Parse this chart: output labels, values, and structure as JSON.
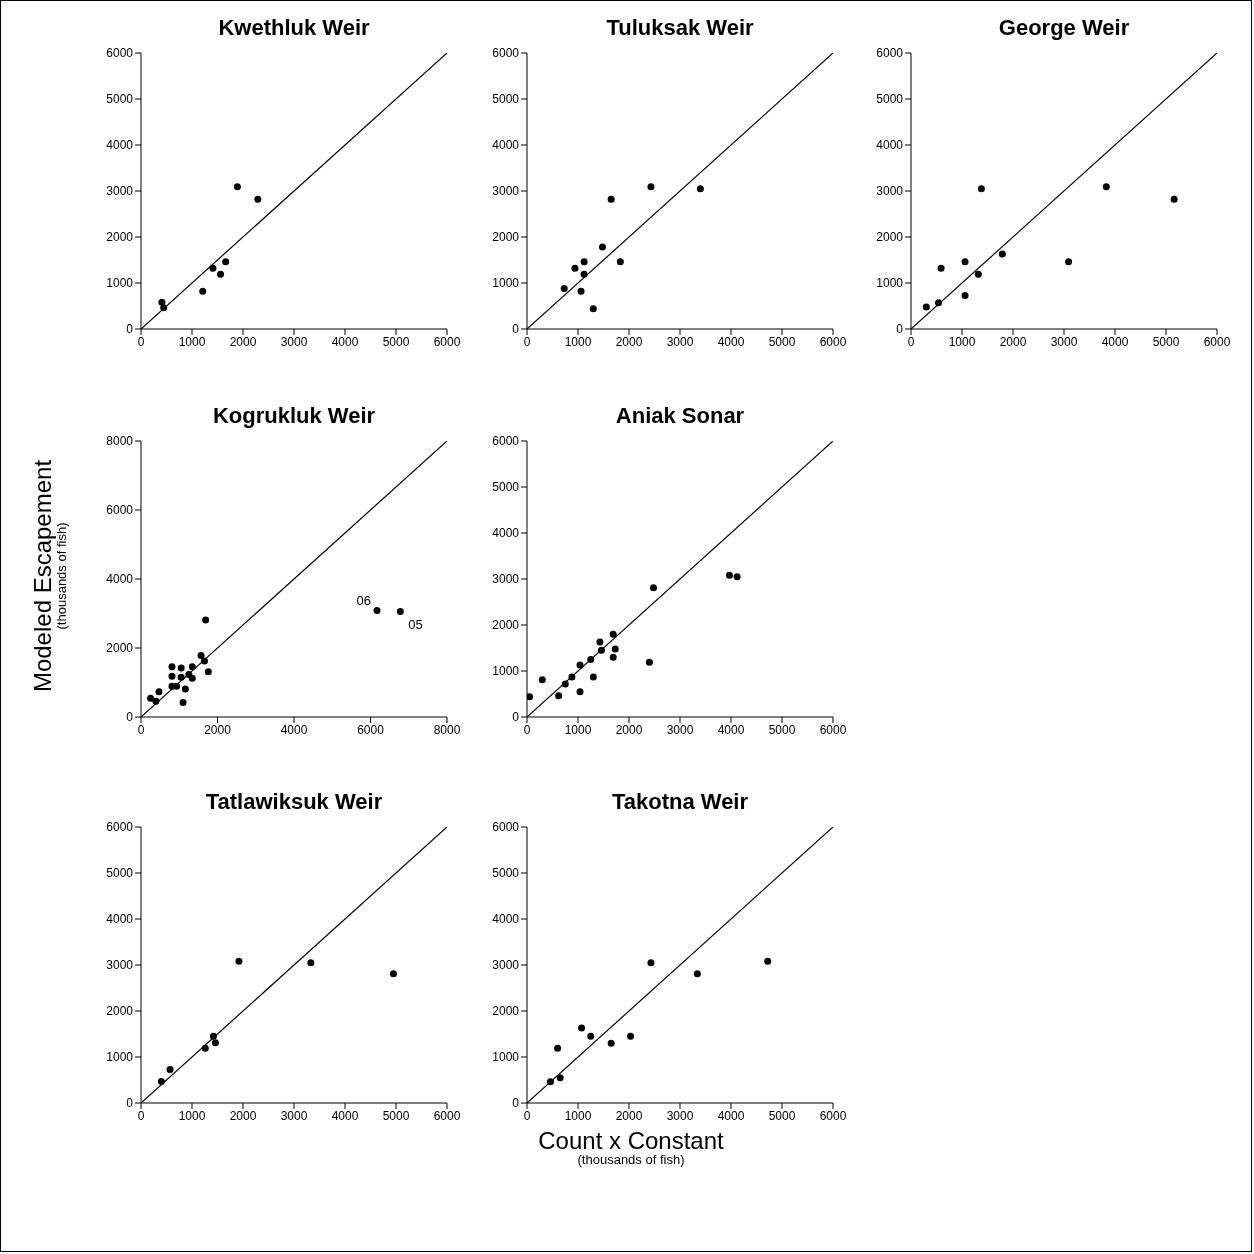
{
  "chart_data": [
    {
      "type": "scatter",
      "title": "Kwethluk Weir",
      "xlabel": "Count x Constant\n(thousands of fish)",
      "ylabel": "Modeled Escapement\n(thousands of fish)",
      "xlim": [
        0,
        6000
      ],
      "ylim": [
        0,
        6000
      ],
      "xticks": [
        0,
        1000,
        2000,
        3000,
        4000,
        5000,
        6000
      ],
      "yticks": [
        0,
        1000,
        2000,
        3000,
        4000,
        5000,
        6000
      ],
      "series": [
        {
          "type": "scatter",
          "color": "#000000",
          "marker": "circle",
          "x": [
            410,
            445,
            1210,
            1410,
            1560,
            1660,
            1890,
            2290
          ],
          "values": [
            580,
            460,
            820,
            1320,
            1190,
            1460,
            3090,
            2820
          ]
        },
        {
          "type": "line",
          "color": "#000000",
          "marker": "none",
          "x": [
            0,
            6000
          ],
          "values": [
            0,
            6000
          ]
        }
      ]
    },
    {
      "type": "scatter",
      "title": "Tuluksak Weir",
      "xlim": [
        0,
        6000
      ],
      "ylim": [
        0,
        6000
      ],
      "xticks": [
        0,
        1000,
        2000,
        3000,
        4000,
        5000,
        6000
      ],
      "yticks": [
        0,
        1000,
        2000,
        3000,
        4000,
        5000,
        6000
      ],
      "series": [
        {
          "type": "scatter",
          "color": "#000000",
          "marker": "circle",
          "x": [
            730,
            940,
            1060,
            1120,
            1120,
            1300,
            1480,
            1830,
            1650,
            2430,
            3400
          ],
          "values": [
            880,
            1320,
            820,
            1460,
            1190,
            440,
            1780,
            1460,
            2820,
            3090,
            3050
          ]
        },
        {
          "type": "line",
          "color": "#000000",
          "marker": "none",
          "x": [
            0,
            6000
          ],
          "values": [
            0,
            6000
          ]
        }
      ]
    },
    {
      "type": "scatter",
      "title": "George Weir",
      "xlim": [
        0,
        6000
      ],
      "ylim": [
        0,
        6000
      ],
      "xticks": [
        0,
        1000,
        2000,
        3000,
        4000,
        5000,
        6000
      ],
      "yticks": [
        0,
        1000,
        2000,
        3000,
        4000,
        5000,
        6000
      ],
      "series": [
        {
          "type": "scatter",
          "color": "#000000",
          "marker": "circle",
          "x": [
            300,
            540,
            590,
            1060,
            1060,
            1320,
            1380,
            1790,
            3090,
            3830,
            5160
          ],
          "values": [
            480,
            570,
            1320,
            1460,
            730,
            1190,
            3050,
            1630,
            1460,
            3090,
            2820
          ]
        },
        {
          "type": "line",
          "color": "#000000",
          "marker": "none",
          "x": [
            0,
            6000
          ],
          "values": [
            0,
            6000
          ]
        }
      ]
    },
    {
      "type": "scatter",
      "title": "Kogrukluk Weir",
      "xlim": [
        0,
        8000
      ],
      "ylim": [
        0,
        8000
      ],
      "xticks": [
        0,
        2000,
        4000,
        6000,
        8000
      ],
      "yticks": [
        0,
        2000,
        4000,
        6000,
        8000
      ],
      "annotations": [
        {
          "text": "06",
          "x": 6170,
          "y": 3090
        },
        {
          "text": "05",
          "x": 6780,
          "y": 3060
        }
      ],
      "series": [
        {
          "type": "scatter",
          "color": "#000000",
          "marker": "circle",
          "x": [
            250,
            390,
            470,
            810,
            810,
            810,
            930,
            1050,
            1050,
            1100,
            1160,
            1250,
            1340,
            1340,
            1570,
            1660,
            1760,
            1690,
            6170,
            6780
          ],
          "values": [
            540,
            460,
            730,
            1460,
            1180,
            890,
            890,
            1420,
            1150,
            420,
            810,
            1230,
            1460,
            1120,
            1780,
            1620,
            1310,
            2810,
            3090,
            3060
          ]
        },
        {
          "type": "line",
          "color": "#000000",
          "marker": "none",
          "x": [
            0,
            8000
          ],
          "values": [
            0,
            8000
          ]
        }
      ]
    },
    {
      "type": "scatter",
      "title": "Aniak Sonar",
      "xlim": [
        0,
        6000
      ],
      "ylim": [
        0,
        6000
      ],
      "xticks": [
        0,
        1000,
        2000,
        3000,
        4000,
        5000,
        6000
      ],
      "yticks": [
        0,
        1000,
        2000,
        3000,
        4000,
        5000,
        6000
      ],
      "series": [
        {
          "type": "scatter",
          "color": "#000000",
          "marker": "circle",
          "x": [
            50,
            300,
            620,
            750,
            880,
            1040,
            1040,
            1250,
            1300,
            1430,
            1460,
            1690,
            1730,
            1690,
            2400,
            2480,
            3970,
            4120
          ],
          "values": [
            440,
            810,
            460,
            720,
            870,
            1130,
            550,
            1250,
            870,
            1630,
            1450,
            1800,
            1480,
            1300,
            1190,
            2810,
            3080,
            3050
          ]
        },
        {
          "type": "line",
          "color": "#000000",
          "marker": "none",
          "x": [
            0,
            6000
          ],
          "values": [
            0,
            6000
          ]
        }
      ]
    },
    {
      "type": "scatter",
      "title": "Tatlawiksuk Weir",
      "xlim": [
        0,
        6000
      ],
      "ylim": [
        0,
        6000
      ],
      "xticks": [
        0,
        1000,
        2000,
        3000,
        4000,
        5000,
        6000
      ],
      "yticks": [
        0,
        1000,
        2000,
        3000,
        4000,
        5000,
        6000
      ],
      "series": [
        {
          "type": "scatter",
          "color": "#000000",
          "marker": "circle",
          "x": [
            400,
            570,
            1260,
            1420,
            1460,
            1920,
            3330,
            4950
          ],
          "values": [
            470,
            730,
            1190,
            1450,
            1310,
            3080,
            3050,
            2810
          ]
        },
        {
          "type": "line",
          "color": "#000000",
          "marker": "none",
          "x": [
            0,
            6000
          ],
          "values": [
            0,
            6000
          ]
        }
      ]
    },
    {
      "type": "scatter",
      "title": "Takotna Weir",
      "xlim": [
        0,
        6000
      ],
      "ylim": [
        0,
        6000
      ],
      "xticks": [
        0,
        1000,
        2000,
        3000,
        4000,
        5000,
        6000
      ],
      "yticks": [
        0,
        1000,
        2000,
        3000,
        4000,
        5000,
        6000
      ],
      "series": [
        {
          "type": "scatter",
          "color": "#000000",
          "marker": "circle",
          "x": [
            460,
            650,
            600,
            1070,
            1250,
            1650,
            2030,
            2430,
            3340,
            4720
          ],
          "values": [
            460,
            550,
            1190,
            1630,
            1450,
            1300,
            1450,
            3050,
            2810,
            3080
          ]
        },
        {
          "type": "line",
          "color": "#000000",
          "marker": "none",
          "x": [
            0,
            6000
          ],
          "values": [
            0,
            6000
          ]
        }
      ]
    }
  ]
}
